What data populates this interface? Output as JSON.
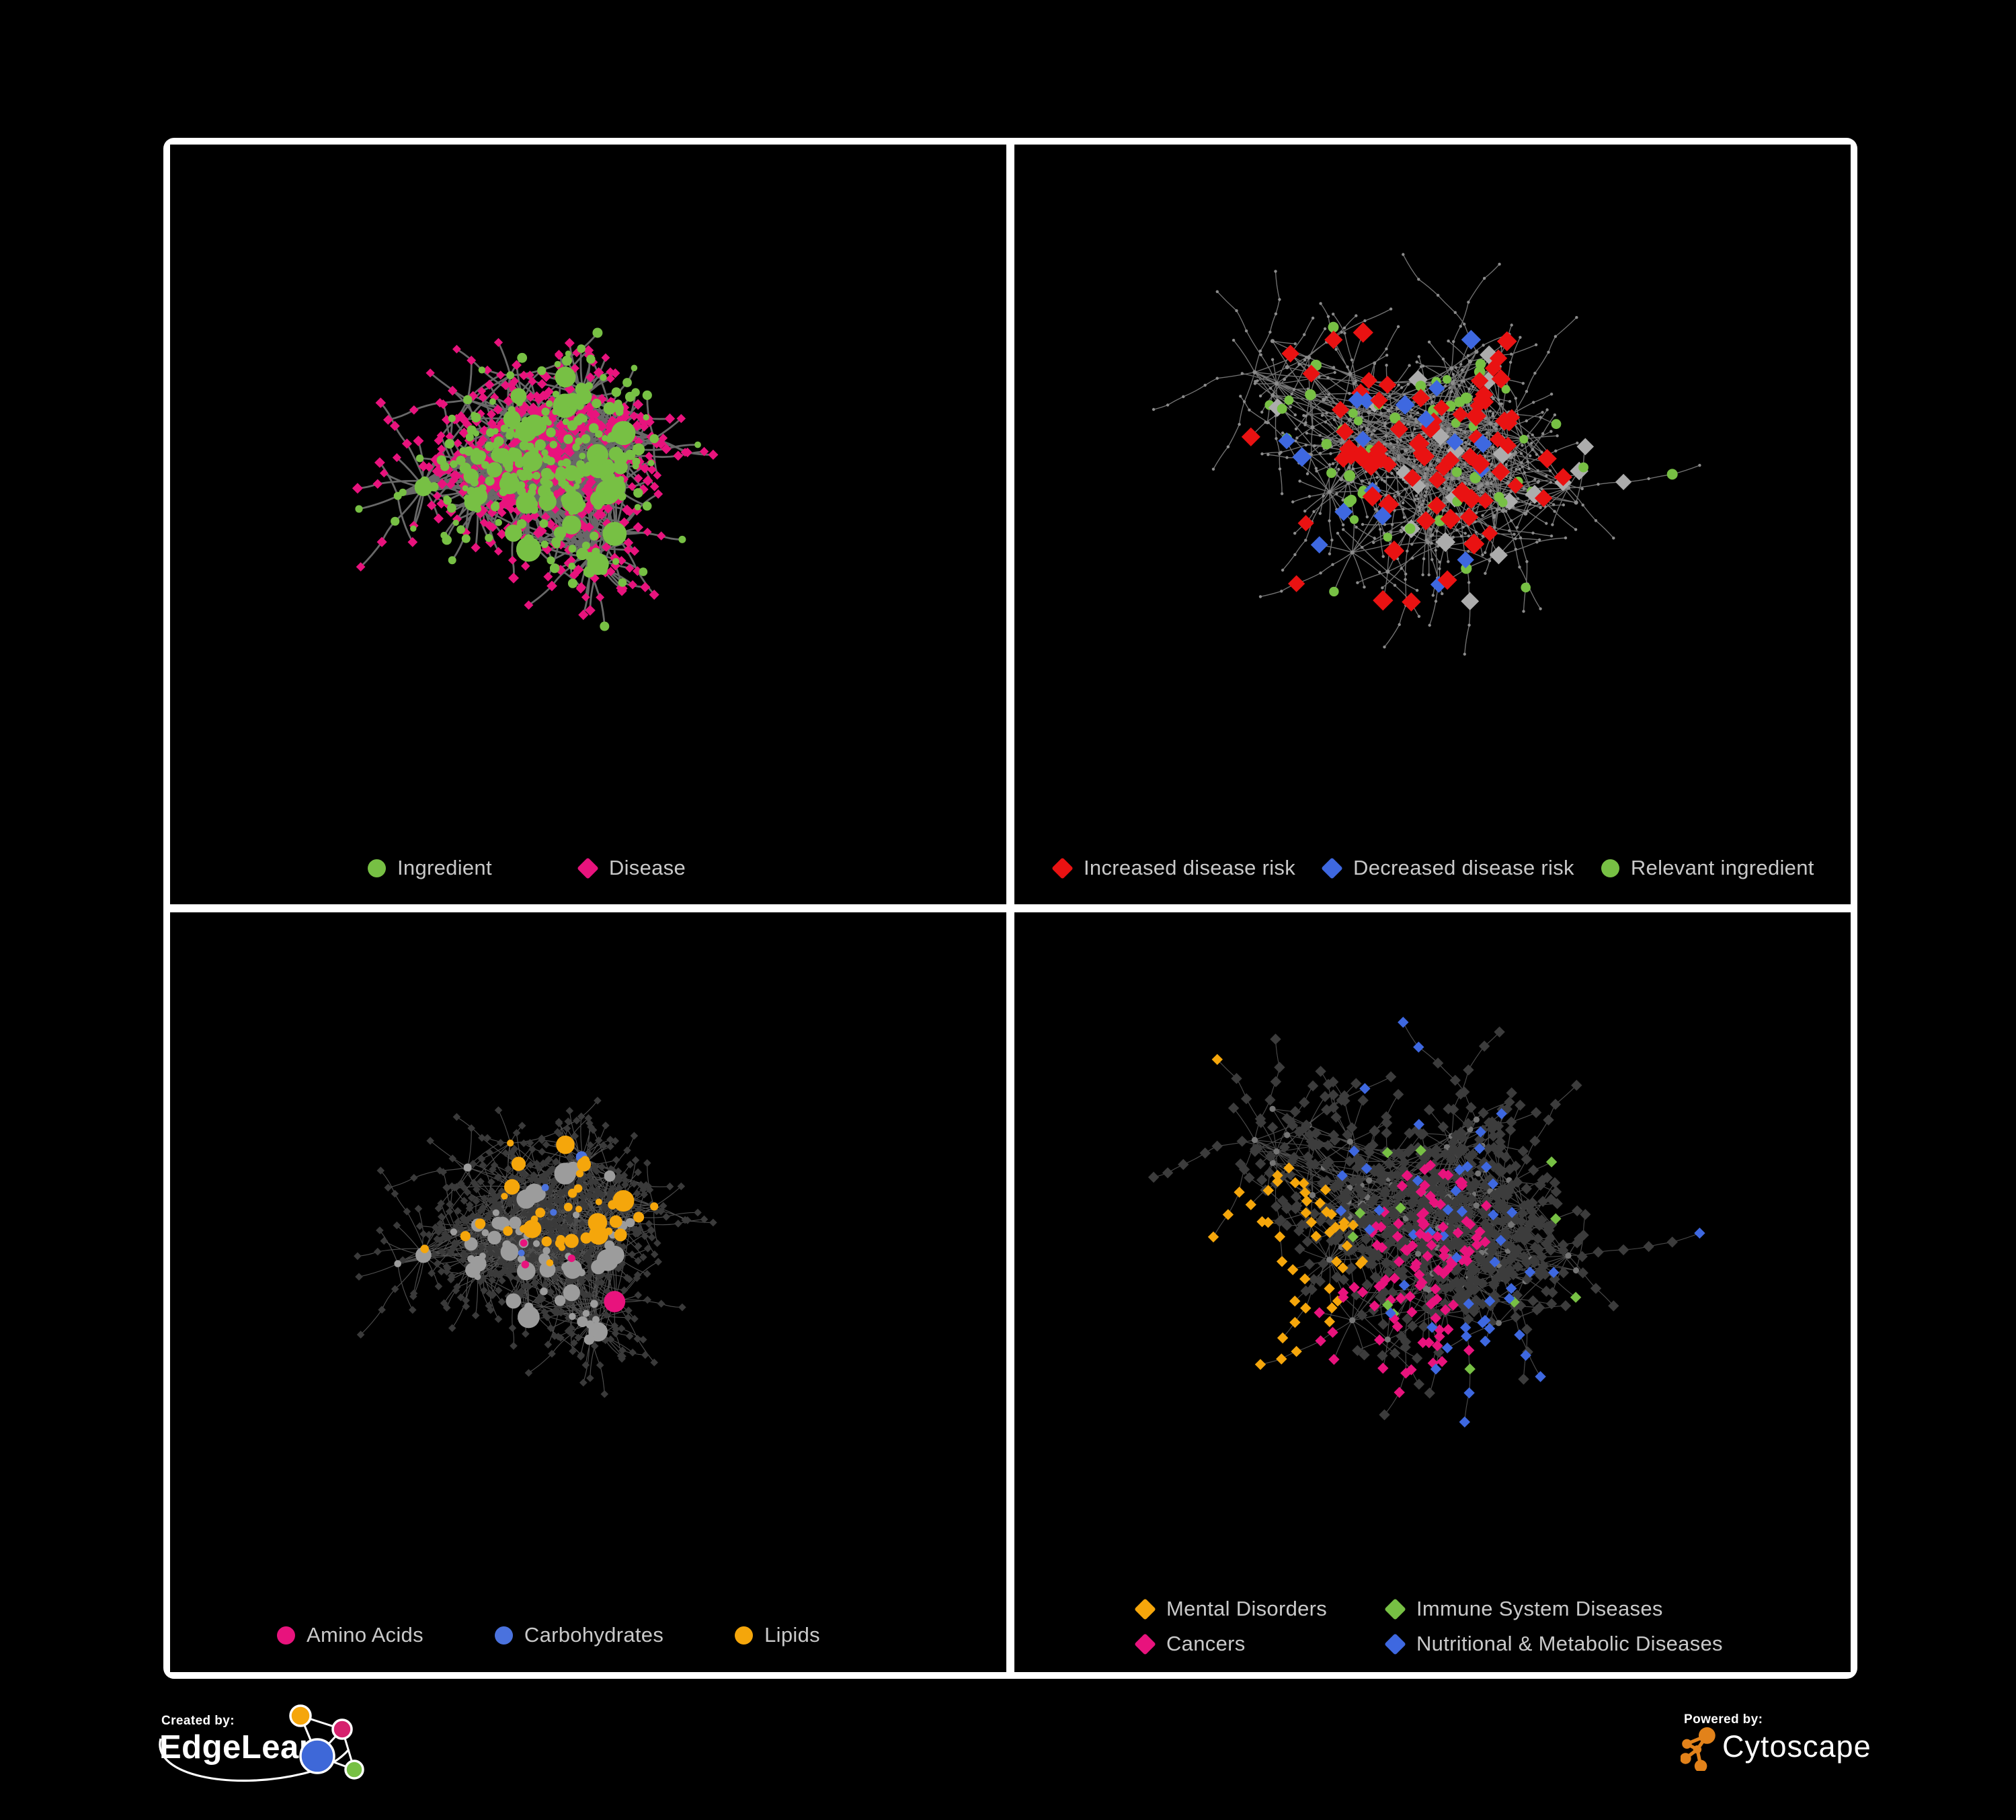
{
  "page": {
    "background": "#000000",
    "frame_color": "#FFFFFF"
  },
  "panels": [
    {
      "name": "ingredient-disease-network",
      "legend": [
        {
          "label": "Ingredient",
          "shape": "circle",
          "color": "#77C044"
        },
        {
          "label": "Disease",
          "shape": "diamond",
          "color": "#E8137D"
        }
      ]
    },
    {
      "name": "disease-risk-network",
      "legend": [
        {
          "label": "Increased disease risk",
          "shape": "diamond",
          "color": "#E91212"
        },
        {
          "label": "Decreased disease risk",
          "shape": "diamond",
          "color": "#3E68E0"
        },
        {
          "label": "Relevant ingredient",
          "shape": "circle",
          "color": "#77C044"
        }
      ]
    },
    {
      "name": "macronutrient-network",
      "legend": [
        {
          "label": "Amino Acids",
          "shape": "circle",
          "color": "#E8137D"
        },
        {
          "label": "Carbohydrates",
          "shape": "circle",
          "color": "#4A72DE"
        },
        {
          "label": "Lipids",
          "shape": "circle",
          "color": "#F5A60B"
        }
      ]
    },
    {
      "name": "disease-category-network",
      "legend": [
        {
          "label": "Mental Disorders",
          "shape": "diamond",
          "color": "#F5A60B"
        },
        {
          "label": "Immune System Diseases",
          "shape": "diamond",
          "color": "#77C044"
        },
        {
          "label": "Cancers",
          "shape": "diamond",
          "color": "#E8137D"
        },
        {
          "label": "Nutritional & Metabolic Diseases",
          "shape": "diamond",
          "color": "#3E68E0"
        }
      ]
    }
  ],
  "network_styles": {
    "panel1": {
      "ingredient": "#77C044",
      "disease": "#E8137D",
      "edge": "#6E6E6E"
    },
    "panel2": {
      "base": "#8C8C8C",
      "increased": "#E91212",
      "decreased": "#3E68E0",
      "neutral": "#ACACAC",
      "relevant": "#77C044",
      "edge": "#8F8F8F"
    },
    "panel3": {
      "amino": "#E8137D",
      "carbohydrate": "#4A72DE",
      "lipid": "#F5A60B",
      "ingredient": "#9C9C9C",
      "disease": "#3A3A3A",
      "edge": "#999999"
    },
    "panel4": {
      "mental": "#F5A60B",
      "immune": "#77C044",
      "cancer": "#E8137D",
      "nutritional": "#3E68E0",
      "disease": "#3C3C3C",
      "ingredient": "#757575",
      "edge": "#A3A3A3"
    }
  },
  "footer": {
    "created_by_label": "Created by:",
    "created_by_brand": "EdgeLeap",
    "powered_by_label": "Powered by:",
    "powered_by_brand": "Cytoscape"
  }
}
